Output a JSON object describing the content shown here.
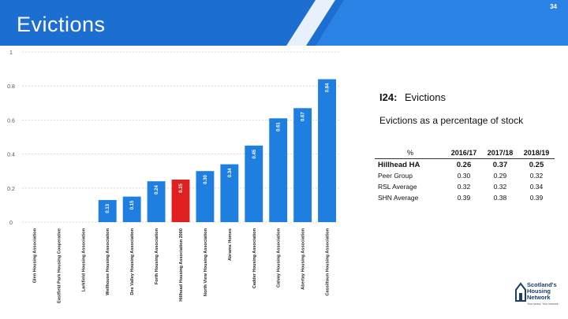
{
  "page": {
    "title": "Evictions",
    "page_number": "34"
  },
  "panel": {
    "id": "I24:",
    "label": "Evictions",
    "subtitle": "Evictions as a percentage of stock"
  },
  "table": {
    "headers": [
      "%",
      "2016/17",
      "2017/18",
      "2018/19"
    ],
    "rows": [
      {
        "label": "Hillhead HA",
        "values": [
          "0.26",
          "0.37",
          "0.25"
        ],
        "highlight": true
      },
      {
        "label": "Peer Group",
        "values": [
          "0.30",
          "0.29",
          "0.32"
        ],
        "highlight": false
      },
      {
        "label": "RSL Average",
        "values": [
          "0.32",
          "0.32",
          "0.34"
        ],
        "highlight": false
      },
      {
        "label": "SHN Average",
        "values": [
          "0.39",
          "0.38",
          "0.39"
        ],
        "highlight": false
      }
    ]
  },
  "logo": {
    "line1": "Scotland's",
    "line2": "Housing",
    "line3": "Network",
    "tagline": "Your sector. Your network"
  },
  "colors": {
    "header": "#1c6fd1",
    "bar": "#1f7fe0",
    "highlight_bar": "#e02020"
  },
  "chart_data": {
    "type": "bar",
    "categories": [
      "Glen Housing Association",
      "Eastfield Park Housing Cooperative",
      "Larkfield Housing Association",
      "Wellhouse Housing Association",
      "Dee Valley Housing Association",
      "Forth Housing Association",
      "Hillhead Housing Association 2000",
      "North View Housing Association",
      "Abrams Homes",
      "Cadder Housing Association",
      "Calvay Housing Association",
      "Abertay Housing Association",
      "Cassiltoun Housing Association"
    ],
    "values": [
      0,
      0,
      0,
      0.13,
      0.15,
      0.24,
      0.25,
      0.3,
      0.34,
      0.45,
      0.61,
      0.67,
      0.84
    ],
    "value_labels": [
      "",
      "",
      "",
      "0.13",
      "0.15",
      "0.24",
      "0.25",
      "0.30",
      "0.34",
      "0.45",
      "0.61",
      "0.67",
      "0.84"
    ],
    "highlight_index": 6,
    "yticks": [
      "0",
      "0.2",
      "0.4",
      "0.6",
      "0.8",
      "1"
    ],
    "ylim": [
      0,
      1
    ],
    "grid": true,
    "title": "",
    "xlabel": "",
    "ylabel": ""
  }
}
